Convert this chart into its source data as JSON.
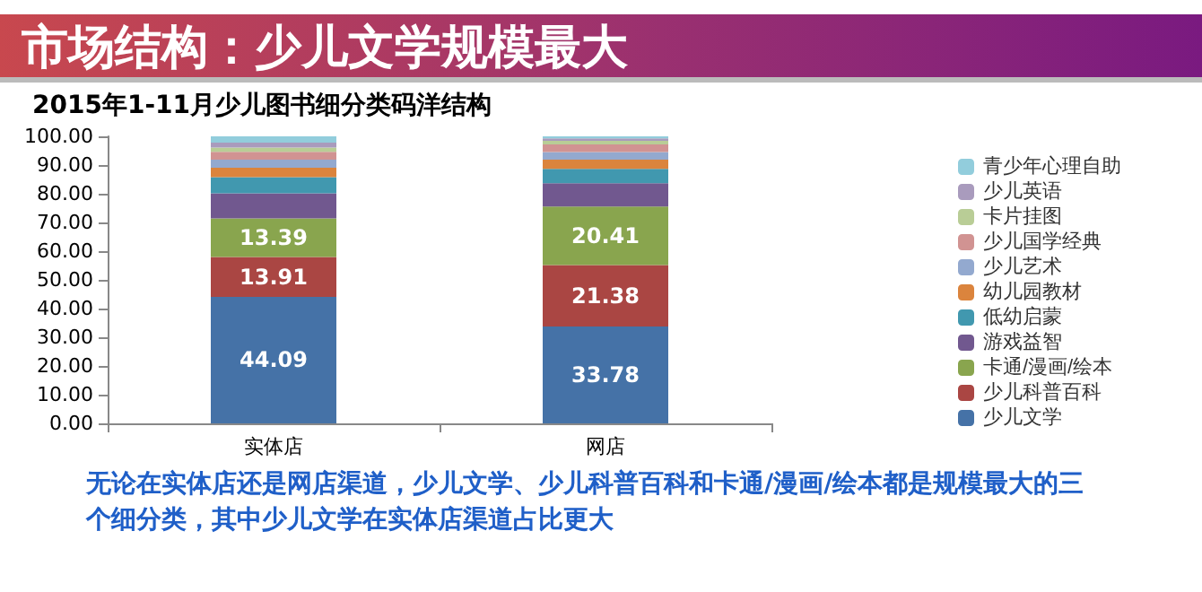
{
  "chart_data": {
    "type": "bar",
    "stacked": true,
    "title": "市场结构：少儿文学规模最大",
    "subtitle": "2015年1-11月少儿图书细分类码洋结构",
    "categories": [
      "实体店",
      "网店"
    ],
    "series": [
      {
        "name": "少儿文学",
        "color": "#4572a7",
        "values": [
          44.09,
          33.78
        ],
        "value_labels": [
          "44.09",
          "33.78"
        ]
      },
      {
        "name": "少儿科普百科",
        "color": "#aa4643",
        "values": [
          13.91,
          21.38
        ],
        "value_labels": [
          "13.91",
          "21.38"
        ]
      },
      {
        "name": "卡通/漫画/绘本",
        "color": "#89a54e",
        "values": [
          13.39,
          20.41
        ],
        "value_labels": [
          "13.39",
          "20.41"
        ]
      },
      {
        "name": "游戏益智",
        "color": "#71588f",
        "values": [
          8.8,
          8.1
        ]
      },
      {
        "name": "低幼启蒙",
        "color": "#4198af",
        "values": [
          5.6,
          5.0
        ]
      },
      {
        "name": "幼儿园教材",
        "color": "#db843d",
        "values": [
          3.3,
          3.2
        ]
      },
      {
        "name": "少儿艺术",
        "color": "#93a9cf",
        "values": [
          2.8,
          2.7
        ]
      },
      {
        "name": "少儿国学经典",
        "color": "#d19392",
        "values": [
          2.7,
          2.6
        ]
      },
      {
        "name": "卡片挂图",
        "color": "#b9cd96",
        "values": [
          1.5,
          1.3
        ]
      },
      {
        "name": "少儿英语",
        "color": "#a99bbd",
        "values": [
          1.7,
          0.8
        ]
      },
      {
        "name": "青少年心理自助",
        "color": "#92cddc",
        "values": [
          2.2,
          0.7
        ]
      }
    ],
    "ylim": [
      0,
      100
    ],
    "yticks": [
      {
        "value": 0,
        "label": "0.00"
      },
      {
        "value": 10,
        "label": "10.00"
      },
      {
        "value": 20,
        "label": "20.00"
      },
      {
        "value": 30,
        "label": "30.00"
      },
      {
        "value": 40,
        "label": "40.00"
      },
      {
        "value": 50,
        "label": "50.00"
      },
      {
        "value": 60,
        "label": "60.00"
      },
      {
        "value": 70,
        "label": "70.00"
      },
      {
        "value": 80,
        "label": "80.00"
      },
      {
        "value": 90,
        "label": "90.00"
      },
      {
        "value": 100,
        "label": "100.00"
      }
    ],
    "grid": false,
    "legend": "right",
    "annotations": [
      "无论在实体店还是网店渠道，少儿文学、少儿科普百科和卡通/漫画/绘本都是规模最大的三个细分类，其中少儿文学在实体店渠道占比更大"
    ]
  }
}
